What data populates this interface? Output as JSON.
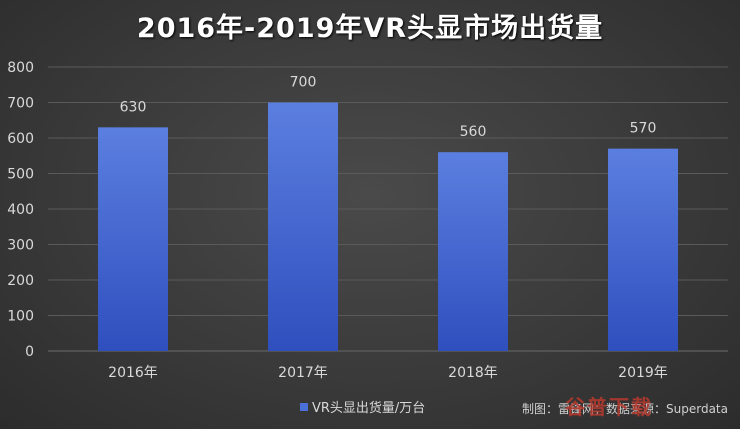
{
  "chart_data": {
    "type": "bar",
    "title": "2016年-2019年VR头显市场出货量",
    "categories": [
      "2016年",
      "2017年",
      "2018年",
      "2019年"
    ],
    "series": [
      {
        "name": "VR头显出货量/万台",
        "values": [
          630,
          700,
          560,
          570
        ],
        "color": "#4a6fd6"
      }
    ],
    "ylim": [
      0,
      800
    ],
    "yticks": [
      "0",
      "100",
      "200",
      "300",
      "400",
      "500",
      "600",
      "700",
      "800"
    ],
    "data_labels": [
      "630",
      "700",
      "560",
      "570"
    ],
    "grid": true,
    "legend_position": "bottom"
  },
  "source": "制图：雷锋网；数据来源：Superdata",
  "watermark": "谷普下载",
  "colors": {
    "bar_top": "#5b7fe0",
    "bar_bottom": "#2f4fbe",
    "grid": "#5a5a5a"
  }
}
